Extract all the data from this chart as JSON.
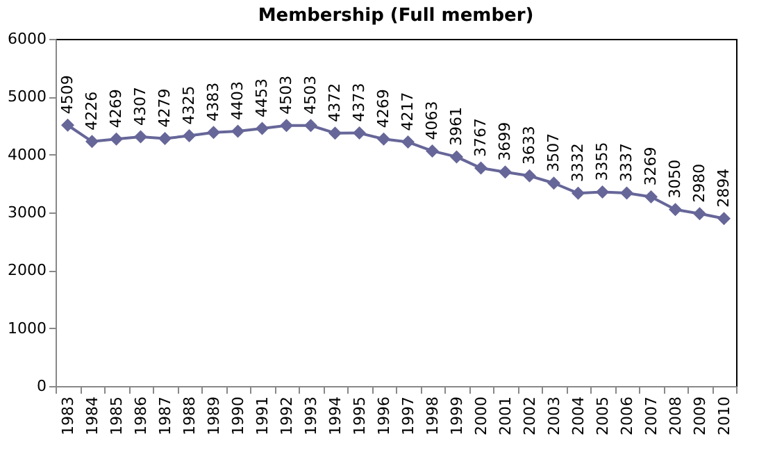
{
  "chart_data": {
    "type": "line",
    "title": "Membership (Full member)",
    "categories": [
      "1983",
      "1984",
      "1985",
      "1986",
      "1987",
      "1988",
      "1989",
      "1990",
      "1991",
      "1992",
      "1993",
      "1994",
      "1995",
      "1996",
      "1997",
      "1998",
      "1999",
      "2000",
      "2001",
      "2002",
      "2003",
      "2004",
      "2005",
      "2006",
      "2007",
      "2008",
      "2009",
      "2010"
    ],
    "series": [
      {
        "color": "#666699",
        "values": [
          4509,
          4226,
          4269,
          4307,
          4279,
          4325,
          4383,
          4403,
          4453,
          4503,
          4503,
          4372,
          4373,
          4269,
          4217,
          4063,
          3961,
          3767,
          3699,
          3633,
          3507,
          3332,
          3355,
          3337,
          3269,
          3050,
          2980,
          2894
        ]
      }
    ],
    "ylim": [
      0,
      6000
    ],
    "yticks": [
      0,
      1000,
      2000,
      3000,
      4000,
      5000,
      6000
    ],
    "marker": "diamond",
    "line_style": "solid",
    "data_labels": true,
    "grid": false
  }
}
